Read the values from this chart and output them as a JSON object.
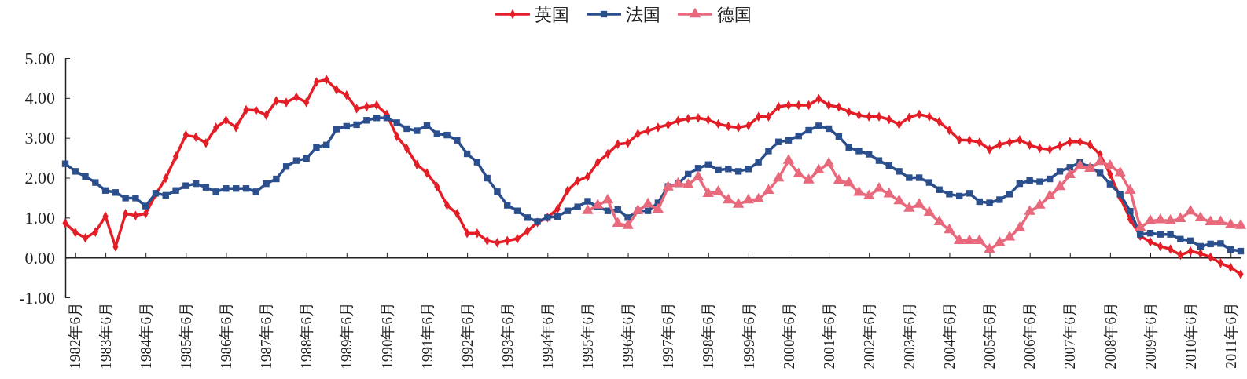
{
  "chart_data": {
    "type": "line",
    "legend": "top",
    "ylim": [
      -1,
      5
    ],
    "yticks": [
      {
        "value": -1,
        "label": "-1.00"
      },
      {
        "value": 0,
        "label": "0.00"
      },
      {
        "value": 1,
        "label": "1.00"
      },
      {
        "value": 2,
        "label": "2.00"
      },
      {
        "value": 3,
        "label": "3.00"
      },
      {
        "value": 4,
        "label": "4.00"
      },
      {
        "value": 5,
        "label": "5.00"
      }
    ],
    "categories": [
      null,
      "1982年6月",
      null,
      null,
      "1983年6月",
      null,
      null,
      null,
      "1984年6月",
      null,
      null,
      null,
      "1985年6月",
      null,
      null,
      null,
      "1986年6月",
      null,
      null,
      null,
      "1987年6月",
      null,
      null,
      null,
      "1988年6月",
      null,
      null,
      null,
      "1989年6月",
      null,
      null,
      null,
      "1990年6月",
      null,
      null,
      null,
      "1991年6月",
      null,
      null,
      null,
      "1992年6月",
      null,
      null,
      null,
      "1993年6月",
      null,
      null,
      null,
      "1994年6月",
      null,
      null,
      null,
      "1995年6月",
      null,
      null,
      null,
      "1996年6月",
      null,
      null,
      null,
      "1997年6月",
      null,
      null,
      null,
      "1998年6月",
      null,
      null,
      null,
      "1999年6月",
      null,
      null,
      null,
      "2000年6月",
      null,
      null,
      null,
      "2001年6月",
      null,
      null,
      null,
      "2002年6月",
      null,
      null,
      null,
      "2003年6月",
      null,
      null,
      null,
      "2004年6月",
      null,
      null,
      null,
      "2005年6月",
      null,
      null,
      null,
      "2006年6月",
      null,
      null,
      null,
      "2007年6月",
      null,
      null,
      null,
      "2008年6月",
      null,
      null,
      null,
      "2009年6月",
      null,
      null,
      null,
      "2010年6月",
      null,
      null,
      null,
      "2011年6月",
      null
    ],
    "series": [
      {
        "name": "英国",
        "color": "#e31e26",
        "marker": "diamond",
        "values": [
          0.86,
          0.63,
          0.49,
          0.64,
          1.03,
          0.27,
          1.1,
          1.05,
          1.1,
          1.58,
          1.99,
          2.53,
          3.07,
          3.02,
          2.87,
          3.26,
          3.44,
          3.26,
          3.7,
          3.69,
          3.57,
          3.93,
          3.89,
          4.02,
          3.89,
          4.4,
          4.46,
          4.21,
          4.07,
          3.73,
          3.78,
          3.82,
          3.59,
          3.04,
          2.73,
          2.33,
          2.12,
          1.78,
          1.31,
          1.1,
          0.61,
          0.61,
          0.42,
          0.37,
          0.42,
          0.47,
          0.66,
          0.88,
          1.0,
          1.22,
          1.68,
          1.92,
          2.03,
          2.39,
          2.6,
          2.84,
          2.87,
          3.1,
          3.18,
          3.26,
          3.33,
          3.43,
          3.48,
          3.5,
          3.45,
          3.35,
          3.29,
          3.26,
          3.31,
          3.53,
          3.53,
          3.78,
          3.82,
          3.82,
          3.82,
          3.98,
          3.82,
          3.77,
          3.65,
          3.57,
          3.53,
          3.53,
          3.46,
          3.34,
          3.51,
          3.59,
          3.53,
          3.4,
          3.19,
          2.95,
          2.94,
          2.89,
          2.71,
          2.83,
          2.89,
          2.95,
          2.82,
          2.74,
          2.71,
          2.8,
          2.9,
          2.9,
          2.83,
          2.58,
          2.09,
          1.51,
          0.96,
          0.54,
          0.39,
          0.28,
          0.21,
          0.06,
          0.16,
          0.1,
          0.01,
          -0.14,
          -0.25,
          -0.42
        ]
      },
      {
        "name": "法国",
        "color": "#2b4e8c",
        "marker": "square",
        "values": [
          2.35,
          2.16,
          2.03,
          1.88,
          1.68,
          1.63,
          1.49,
          1.49,
          1.29,
          1.61,
          1.56,
          1.68,
          1.8,
          1.85,
          1.76,
          1.65,
          1.73,
          1.73,
          1.73,
          1.65,
          1.85,
          1.97,
          2.28,
          2.43,
          2.48,
          2.76,
          2.82,
          3.22,
          3.29,
          3.33,
          3.44,
          3.5,
          3.5,
          3.38,
          3.23,
          3.18,
          3.31,
          3.1,
          3.07,
          2.94,
          2.6,
          2.39,
          1.99,
          1.65,
          1.31,
          1.17,
          1.0,
          0.9,
          1.0,
          1.03,
          1.17,
          1.27,
          1.41,
          1.27,
          1.17,
          1.2,
          1.0,
          1.17,
          1.17,
          1.37,
          1.78,
          1.85,
          2.09,
          2.24,
          2.33,
          2.19,
          2.22,
          2.16,
          2.22,
          2.39,
          2.67,
          2.9,
          2.94,
          3.05,
          3.19,
          3.3,
          3.23,
          3.03,
          2.76,
          2.67,
          2.59,
          2.43,
          2.3,
          2.16,
          2.0,
          2.0,
          1.88,
          1.7,
          1.59,
          1.54,
          1.61,
          1.4,
          1.37,
          1.45,
          1.59,
          1.85,
          1.93,
          1.9,
          1.97,
          2.16,
          2.26,
          2.38,
          2.26,
          2.12,
          1.84,
          1.59,
          1.16,
          0.58,
          0.61,
          0.58,
          0.58,
          0.46,
          0.42,
          0.28,
          0.34,
          0.35,
          0.2,
          0.16
        ]
      },
      {
        "name": "德国",
        "color": "#e8687c",
        "marker": "triangle",
        "values": [
          null,
          null,
          null,
          null,
          null,
          null,
          null,
          null,
          null,
          null,
          null,
          null,
          null,
          null,
          null,
          null,
          null,
          null,
          null,
          null,
          null,
          null,
          null,
          null,
          null,
          null,
          null,
          null,
          null,
          null,
          null,
          null,
          null,
          null,
          null,
          null,
          null,
          null,
          null,
          null,
          null,
          null,
          null,
          null,
          null,
          null,
          null,
          null,
          null,
          null,
          null,
          null,
          1.17,
          1.31,
          1.44,
          0.85,
          0.8,
          1.17,
          1.34,
          1.2,
          1.76,
          1.85,
          1.82,
          2.02,
          1.6,
          1.65,
          1.44,
          1.33,
          1.44,
          1.46,
          1.68,
          1.99,
          2.43,
          2.09,
          1.94,
          2.19,
          2.36,
          1.93,
          1.87,
          1.63,
          1.54,
          1.73,
          1.59,
          1.42,
          1.23,
          1.33,
          1.13,
          0.89,
          0.69,
          0.42,
          0.42,
          0.42,
          0.2,
          0.37,
          0.51,
          0.74,
          1.15,
          1.31,
          1.54,
          1.77,
          2.07,
          2.3,
          2.23,
          2.4,
          2.3,
          2.12,
          1.68,
          0.75,
          0.92,
          0.94,
          0.92,
          0.97,
          1.16,
          0.99,
          0.89,
          0.89,
          0.82,
          0.8
        ]
      }
    ]
  }
}
